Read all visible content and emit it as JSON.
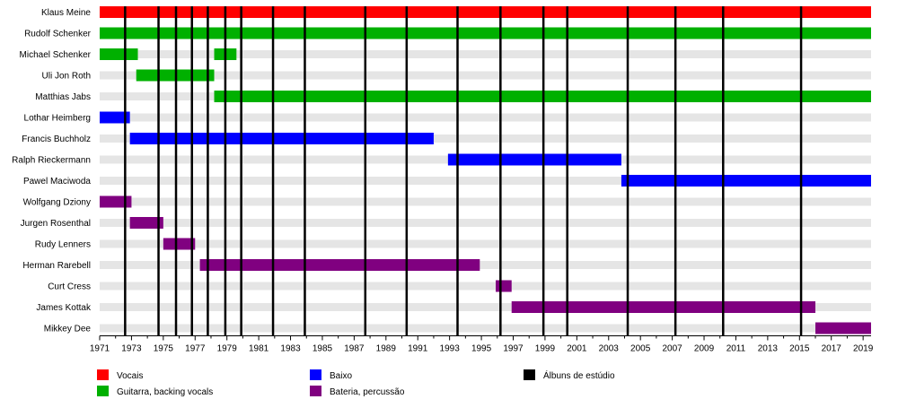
{
  "chart_data": {
    "type": "timeline",
    "x_range": [
      1971,
      2019.5
    ],
    "x_ticks": [
      "1971",
      "1973",
      "1975",
      "1977",
      "1979",
      "1981",
      "1983",
      "1985",
      "1987",
      "1989",
      "1991",
      "1993",
      "1995",
      "1997",
      "1999",
      "2001",
      "2003",
      "2005",
      "2007",
      "2009",
      "2011",
      "2013",
      "2015",
      "2017",
      "2019"
    ],
    "members": [
      "Klaus Meine",
      "Rudolf Schenker",
      "Michael Schenker",
      "Uli Jon Roth",
      "Matthias Jabs",
      "Lothar Heimberg",
      "Francis Buchholz",
      "Ralph Rieckermann",
      "Pawel Maciwoda",
      "Wolfgang Dziony",
      "Jurgen Rosenthal",
      "Rudy Lenners",
      "Herman Rarebell",
      "Curt Cress",
      "James Kottak",
      "Mikkey Dee"
    ],
    "roles": {
      "vocals": {
        "label": "Vocais",
        "color": "#ff0000"
      },
      "guitar": {
        "label": "Guitarra, backing vocals",
        "color": "#00b000"
      },
      "bass": {
        "label": "Baixo",
        "color": "#0000ff"
      },
      "drums": {
        "label": "Bateria, percussão",
        "color": "#800080"
      },
      "albums": {
        "label": "Álbuns de estúdio",
        "color": "#000000"
      }
    },
    "periods": [
      {
        "member": "Klaus Meine",
        "role": "vocals",
        "start": 1971,
        "end": 2019.5
      },
      {
        "member": "Rudolf Schenker",
        "role": "guitar",
        "start": 1971,
        "end": 2019.5
      },
      {
        "member": "Michael Schenker",
        "role": "guitar",
        "start": 1971,
        "end": 1973.4
      },
      {
        "member": "Michael Schenker",
        "role": "guitar",
        "start": 1978.2,
        "end": 1979.6
      },
      {
        "member": "Uli Jon Roth",
        "role": "guitar",
        "start": 1973.3,
        "end": 1978.2
      },
      {
        "member": "Matthias Jabs",
        "role": "guitar",
        "start": 1978.2,
        "end": 2019.5
      },
      {
        "member": "Lothar Heimberg",
        "role": "bass",
        "start": 1971,
        "end": 1972.9
      },
      {
        "member": "Francis Buchholz",
        "role": "bass",
        "start": 1972.9,
        "end": 1992
      },
      {
        "member": "Ralph Rieckermann",
        "role": "bass",
        "start": 1992.9,
        "end": 2003.8
      },
      {
        "member": "Pawel Maciwoda",
        "role": "bass",
        "start": 2003.8,
        "end": 2019.5
      },
      {
        "member": "Wolfgang Dziony",
        "role": "drums",
        "start": 1971,
        "end": 1973
      },
      {
        "member": "Jurgen Rosenthal",
        "role": "drums",
        "start": 1972.9,
        "end": 1975
      },
      {
        "member": "Rudy Lenners",
        "role": "drums",
        "start": 1975,
        "end": 1977
      },
      {
        "member": "Herman Rarebell",
        "role": "drums",
        "start": 1977.3,
        "end": 1994.9
      },
      {
        "member": "Curt Cress",
        "role": "drums",
        "start": 1995.9,
        "end": 1996.9
      },
      {
        "member": "James Kottak",
        "role": "drums",
        "start": 1996.9,
        "end": 2016
      },
      {
        "member": "Mikkey Dee",
        "role": "drums",
        "start": 2016,
        "end": 2019.5
      }
    ],
    "albums": [
      1972.6,
      1974.7,
      1975.8,
      1976.8,
      1977.8,
      1978.9,
      1979.9,
      1981.9,
      1983.9,
      1987.7,
      1990.3,
      1993.5,
      1996.2,
      1998.9,
      2000.4,
      2004.2,
      2007.2,
      2010.2,
      2015.1
    ],
    "legend": {
      "columns": [
        [
          "vocals",
          "guitar"
        ],
        [
          "bass",
          "drums"
        ],
        [
          "albums"
        ]
      ]
    }
  }
}
